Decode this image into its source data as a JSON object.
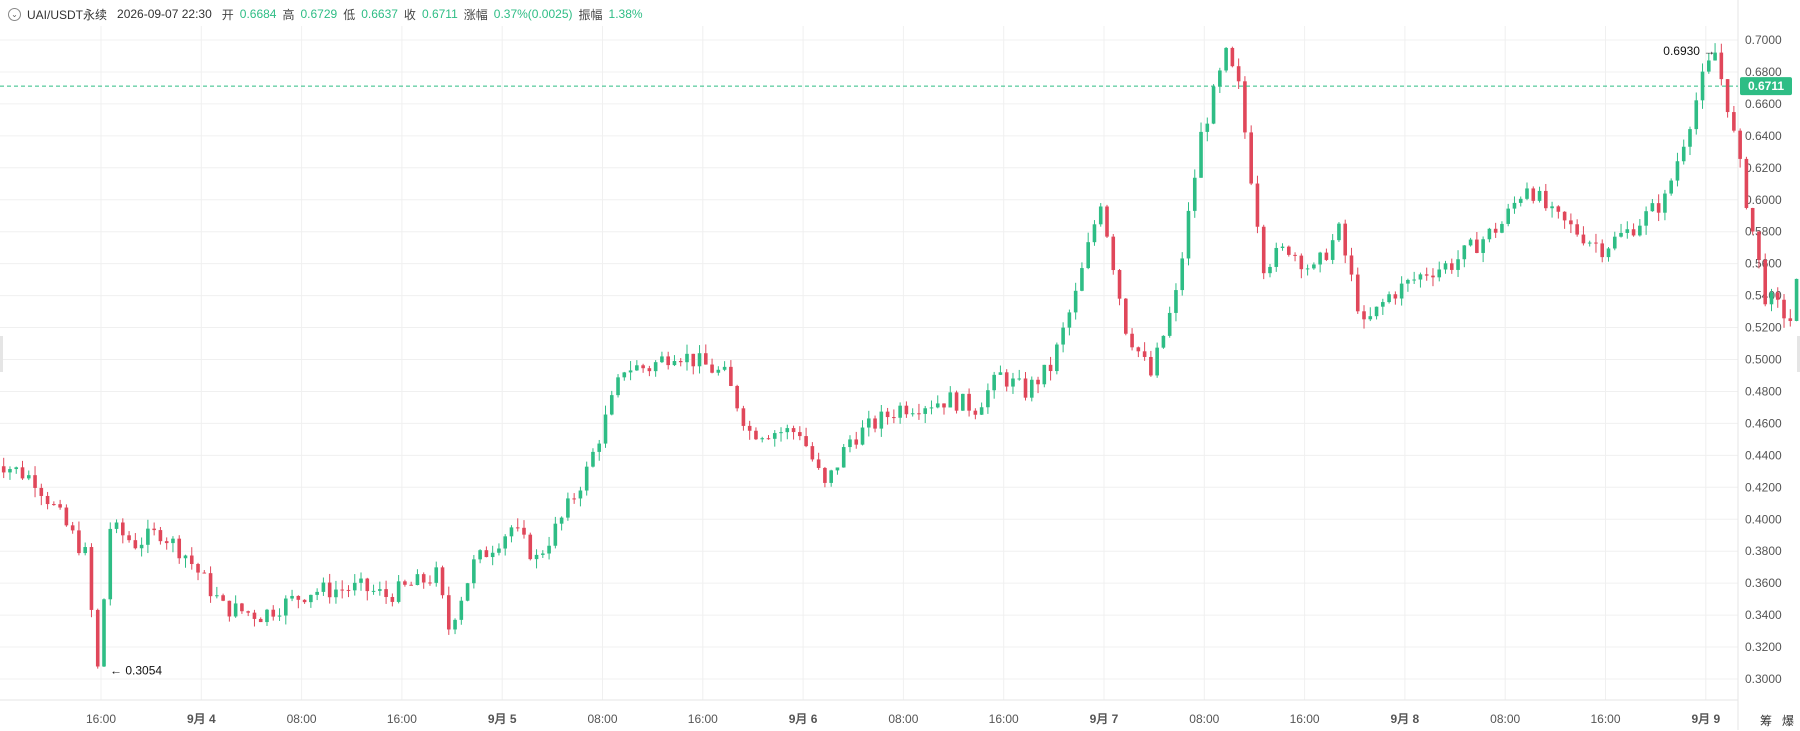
{
  "header": {
    "symbol": "UAI/USDT永续",
    "datetime": "2026-09-07 22:30",
    "open_label": "开",
    "open_value": "0.6684",
    "high_label": "高",
    "high_value": "0.6729",
    "low_label": "低",
    "low_value": "0.6637",
    "close_label": "收",
    "close_value": "0.6711",
    "change_label": "涨幅",
    "change_value": "0.37%(0.0025)",
    "amplitude_label": "振幅",
    "amplitude_value": "1.38%"
  },
  "side_buttons": {
    "chips": "筹",
    "burst": "爆"
  },
  "colors": {
    "up": "#2ebd85",
    "down": "#e0475a",
    "grid": "#f0f0f0",
    "axis_text": "#555555",
    "price_tag": "#2ebd85"
  },
  "chart_data": {
    "type": "candlestick",
    "title": "",
    "symbol": "UAI/USDT永续",
    "ylim": [
      0.29,
      0.71
    ],
    "y_ticks": [
      "0.7000",
      "0.6800",
      "0.6600",
      "0.6400",
      "0.6200",
      "0.6000",
      "0.5800",
      "0.5600",
      "0.5400",
      "0.5200",
      "0.5000",
      "0.4800",
      "0.4600",
      "0.4400",
      "0.4200",
      "0.4000",
      "0.3800",
      "0.3600",
      "0.3400",
      "0.3200",
      "0.3000"
    ],
    "x_ticks": [
      {
        "label": "16:00",
        "bold": false
      },
      {
        "label": "9月 4",
        "bold": true
      },
      {
        "label": "08:00",
        "bold": false
      },
      {
        "label": "16:00",
        "bold": false
      },
      {
        "label": "9月 5",
        "bold": true
      },
      {
        "label": "08:00",
        "bold": false
      },
      {
        "label": "16:00",
        "bold": false
      },
      {
        "label": "9月 6",
        "bold": true
      },
      {
        "label": "08:00",
        "bold": false
      },
      {
        "label": "16:00",
        "bold": false
      },
      {
        "label": "9月 7",
        "bold": true
      },
      {
        "label": "08:00",
        "bold": false
      },
      {
        "label": "16:00",
        "bold": false
      },
      {
        "label": "9月 8",
        "bold": true
      },
      {
        "label": "08:00",
        "bold": false
      },
      {
        "label": "16:00",
        "bold": false
      },
      {
        "label": "9月 9",
        "bold": true
      }
    ],
    "last_price": 0.6711,
    "last_price_label": "0.6711",
    "annotations": [
      {
        "text": "0.6930",
        "value": 0.693,
        "kind": "max",
        "arrow": "→"
      },
      {
        "text": "0.3054",
        "value": 0.3054,
        "kind": "min",
        "arrow": "←"
      }
    ],
    "close_path_hours": [
      [
        0,
        0.44
      ],
      [
        4,
        0.425
      ],
      [
        8,
        0.378
      ],
      [
        9,
        0.306
      ],
      [
        10,
        0.395
      ],
      [
        12,
        0.385
      ],
      [
        14,
        0.392
      ],
      [
        16,
        0.378
      ],
      [
        19,
        0.345
      ],
      [
        22,
        0.34
      ],
      [
        26,
        0.355
      ],
      [
        30,
        0.357
      ],
      [
        32,
        0.352
      ],
      [
        36,
        0.365
      ],
      [
        37,
        0.332
      ],
      [
        39,
        0.372
      ],
      [
        42,
        0.395
      ],
      [
        44,
        0.375
      ],
      [
        46,
        0.4
      ],
      [
        48,
        0.43
      ],
      [
        51,
        0.495
      ],
      [
        53,
        0.495
      ],
      [
        55,
        0.505
      ],
      [
        57,
        0.498
      ],
      [
        59,
        0.49
      ],
      [
        61,
        0.455
      ],
      [
        65,
        0.455
      ],
      [
        67,
        0.42
      ],
      [
        69,
        0.45
      ],
      [
        73,
        0.47
      ],
      [
        77,
        0.475
      ],
      [
        79,
        0.47
      ],
      [
        81,
        0.49
      ],
      [
        83,
        0.48
      ],
      [
        85,
        0.495
      ],
      [
        87,
        0.54
      ],
      [
        89,
        0.6
      ],
      [
        91,
        0.52
      ],
      [
        93,
        0.49
      ],
      [
        95,
        0.54
      ],
      [
        97,
        0.64
      ],
      [
        99,
        0.69
      ],
      [
        100,
        0.67
      ],
      [
        102,
        0.56
      ],
      [
        104,
        0.57
      ],
      [
        106,
        0.555
      ],
      [
        108,
        0.58
      ],
      [
        110,
        0.52
      ],
      [
        112,
        0.54
      ],
      [
        115,
        0.555
      ],
      [
        117,
        0.56
      ],
      [
        121,
        0.585
      ],
      [
        123,
        0.61
      ],
      [
        125,
        0.59
      ],
      [
        129,
        0.57
      ],
      [
        131,
        0.58
      ],
      [
        134,
        0.6
      ],
      [
        137,
        0.675
      ],
      [
        138,
        0.692
      ],
      [
        139,
        0.66
      ],
      [
        141,
        0.58
      ],
      [
        142,
        0.54
      ],
      [
        144,
        0.525
      ],
      [
        146,
        0.61
      ],
      [
        148,
        0.605
      ],
      [
        150,
        0.635
      ],
      [
        153,
        0.65
      ],
      [
        155,
        0.66
      ],
      [
        156,
        0.6711
      ]
    ]
  }
}
